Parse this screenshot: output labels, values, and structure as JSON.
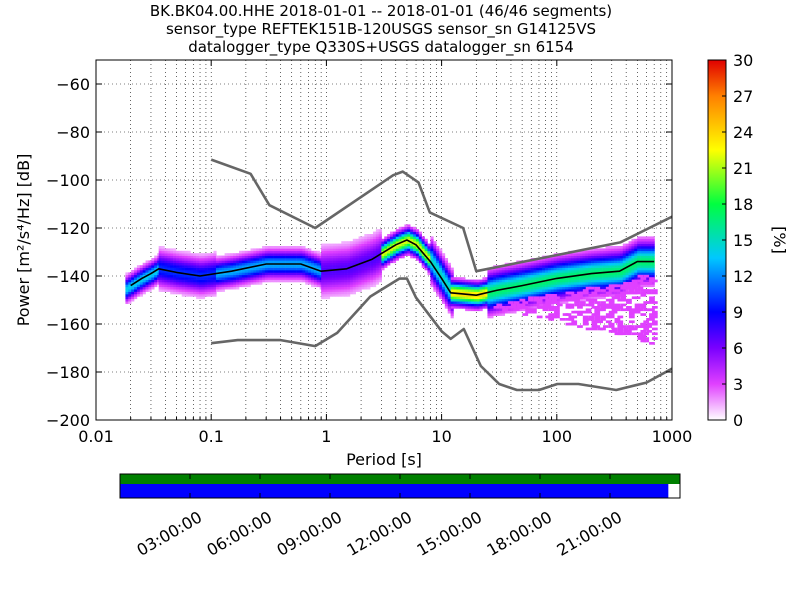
{
  "title": {
    "line1": "BK.BK04.00.HHE   2018-01-01 -- 2018-01-01  (46/46 segments)",
    "line2": "sensor_type REFTEK151B-120USGS sensor_sn G14125VS",
    "line3": "datalogger_type Q330S+USGS datalogger_sn 6154"
  },
  "chart_data": [
    {
      "type": "heatmap",
      "title": "",
      "xlabel": "Period [s]",
      "ylabel": "Power [m²/s⁴/Hz] [dB]",
      "x_scale": "log",
      "xlim": [
        0.01,
        1000
      ],
      "ylim": [
        -200,
        -50
      ],
      "x_ticks": [
        {
          "value": 0.01,
          "label": "0.01"
        },
        {
          "value": 0.1,
          "label": "0.1"
        },
        {
          "value": 1,
          "label": "1"
        },
        {
          "value": 10,
          "label": "10"
        },
        {
          "value": 100,
          "label": "100"
        },
        {
          "value": 1000,
          "label": "1000"
        }
      ],
      "y_ticks": [
        {
          "value": -60,
          "label": "−60"
        },
        {
          "value": -80,
          "label": "−80"
        },
        {
          "value": -100,
          "label": "−100"
        },
        {
          "value": -120,
          "label": "−120"
        },
        {
          "value": -140,
          "label": "−140"
        },
        {
          "value": -160,
          "label": "−160"
        },
        {
          "value": -180,
          "label": "−180"
        },
        {
          "value": -200,
          "label": "−200"
        }
      ],
      "grid": "dotted",
      "colorbar": {
        "label": "[%]",
        "range": [
          0,
          30
        ],
        "ticks": [
          {
            "value": 0,
            "label": "0"
          },
          {
            "value": 3,
            "label": "3"
          },
          {
            "value": 6,
            "label": "6"
          },
          {
            "value": 9,
            "label": "9"
          },
          {
            "value": 12,
            "label": "12"
          },
          {
            "value": 15,
            "label": "15"
          },
          {
            "value": 18,
            "label": "18"
          },
          {
            "value": 21,
            "label": "21"
          },
          {
            "value": 24,
            "label": "24"
          },
          {
            "value": 27,
            "label": "27"
          },
          {
            "value": 30,
            "label": "30"
          }
        ]
      },
      "series": [
        {
          "role": "high-noise-model",
          "color": "#666666",
          "points": [
            [
              0.1,
              -91.5
            ],
            [
              0.22,
              -97.4
            ],
            [
              0.32,
              -110.5
            ],
            [
              0.8,
              -120
            ],
            [
              3.8,
              -98
            ],
            [
              4.6,
              -96.5
            ],
            [
              6.3,
              -101
            ],
            [
              7.9,
              -113.5
            ],
            [
              15.4,
              -120
            ],
            [
              20,
              -138
            ],
            [
              354.8,
              -126
            ],
            [
              10000,
              -91.5
            ]
          ]
        },
        {
          "role": "low-noise-model",
          "color": "#666666",
          "points": [
            [
              0.1,
              -168
            ],
            [
              0.17,
              -166.7
            ],
            [
              0.4,
              -166.7
            ],
            [
              0.8,
              -169.2
            ],
            [
              1.24,
              -163.7
            ],
            [
              2.4,
              -148.6
            ],
            [
              4.3,
              -141.1
            ],
            [
              5,
              -141.1
            ],
            [
              6,
              -149
            ],
            [
              10,
              -163
            ],
            [
              12,
              -166.2
            ],
            [
              15.6,
              -162.1
            ],
            [
              21.9,
              -177.5
            ],
            [
              31.6,
              -185
            ],
            [
              45,
              -187.5
            ],
            [
              70,
              -187.5
            ],
            [
              101,
              -185
            ],
            [
              154,
              -185
            ],
            [
              328,
              -187.5
            ],
            [
              600,
              -184.4
            ],
            [
              1000,
              -178.6
            ]
          ]
        },
        {
          "role": "mode",
          "color": "#000000",
          "points": [
            [
              0.02,
              -144
            ],
            [
              0.025,
              -141
            ],
            [
              0.03,
              -139
            ],
            [
              0.035,
              -137
            ],
            [
              0.05,
              -138.5
            ],
            [
              0.08,
              -140
            ],
            [
              0.15,
              -138
            ],
            [
              0.3,
              -135
            ],
            [
              0.6,
              -135
            ],
            [
              0.9,
              -138
            ],
            [
              1.5,
              -137
            ],
            [
              2.5,
              -133
            ],
            [
              4,
              -127
            ],
            [
              5,
              -125
            ],
            [
              6,
              -127
            ],
            [
              8,
              -134
            ],
            [
              10,
              -141
            ],
            [
              12,
              -147
            ],
            [
              20,
              -148
            ],
            [
              30,
              -146
            ],
            [
              50,
              -144
            ],
            [
              100,
              -141
            ],
            [
              200,
              -139
            ],
            [
              350,
              -138
            ],
            [
              500,
              -134
            ],
            [
              700,
              -134
            ]
          ]
        }
      ],
      "histogram": {
        "bands": [
          {
            "x": [
              0.018,
              0.035
            ],
            "center": -141,
            "width": 3,
            "level": 14
          },
          {
            "x": [
              0.035,
              0.11
            ],
            "center": -138,
            "width": 4.5,
            "level": 10
          },
          {
            "x": [
              0.11,
              0.9
            ],
            "center": -135.5,
            "width": 3.5,
            "level": 13
          },
          {
            "x": [
              0.9,
              3
            ],
            "center": -133,
            "width": 6,
            "level": 7
          },
          {
            "x": [
              3,
              8
            ],
            "center": -127,
            "width": 3,
            "level": 22
          },
          {
            "x": [
              8,
              12
            ],
            "center": -140,
            "width": 5,
            "level": 15
          },
          {
            "x": [
              12,
              25
            ],
            "center": -147,
            "width": 3,
            "level": 24
          },
          {
            "x": [
              25,
              700
            ],
            "center": -139,
            "width": 5,
            "level": 17
          }
        ],
        "scatter": [
          {
            "x": [
              15,
              700
            ],
            "y": [
              -150,
              -168
            ],
            "level": 3
          }
        ]
      }
    },
    {
      "type": "bar",
      "title": "",
      "x_ticks": [
        "03:00:00",
        "06:00:00",
        "09:00:00",
        "12:00:00",
        "15:00:00",
        "18:00:00",
        "21:00:00"
      ],
      "series": [
        {
          "role": "data-availability",
          "color": "#008000",
          "start_hour": 0,
          "end_hour": 24
        },
        {
          "role": "psd-segments",
          "color": "#0000ff",
          "start_hour": 0,
          "end_hour": 23.5
        }
      ],
      "xlim_hours": [
        0,
        24
      ]
    }
  ]
}
